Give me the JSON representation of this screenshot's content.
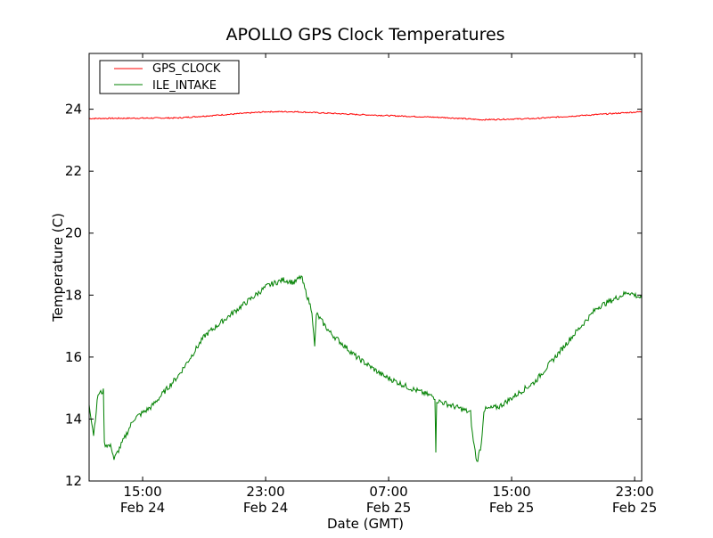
{
  "chart_data": {
    "type": "line",
    "title": "APOLLO GPS Clock Temperatures",
    "xlabel": "Date (GMT)",
    "ylabel": "Temperature (C)",
    "x_units": "hours since 00:00 Feb 24",
    "xlim": [
      11.52,
      47.46
    ],
    "ylim": [
      12,
      25.8
    ],
    "grid": false,
    "legend_placement": "top-left",
    "xticks": [
      {
        "x": 15,
        "label1": "15:00",
        "label2": "Feb 24"
      },
      {
        "x": 23,
        "label1": "23:00",
        "label2": "Feb 24"
      },
      {
        "x": 31,
        "label1": "07:00",
        "label2": "Feb 25"
      },
      {
        "x": 39,
        "label1": "15:00",
        "label2": "Feb 25"
      },
      {
        "x": 47,
        "label1": "23:00",
        "label2": "Feb 25"
      }
    ],
    "yticks": [
      12,
      14,
      16,
      18,
      20,
      22,
      24
    ],
    "series": [
      {
        "name": "GPS_CLOCK",
        "color": "#ff0000",
        "x": [
          11.52,
          17.32,
          23.12,
          24.85,
          28.91,
          34.7,
          37.03,
          40.51,
          47.46
        ],
        "y": [
          23.7,
          23.72,
          23.92,
          23.92,
          23.83,
          23.73,
          23.66,
          23.7,
          23.92
        ]
      },
      {
        "name": "ILE_INTAKE",
        "color": "#008000",
        "x": [
          11.52,
          11.81,
          12.1,
          12.45,
          12.51,
          12.97,
          13.14,
          13.84,
          14.42,
          15.58,
          17.32,
          19.06,
          20.8,
          23.12,
          24.16,
          24.85,
          25.32,
          25.55,
          26.01,
          26.19,
          26.3,
          27.17,
          28.91,
          30.65,
          32.39,
          34.01,
          34.07,
          34.13,
          35.87,
          36.33,
          36.45,
          36.74,
          37.03,
          37.2,
          38.19,
          40.51,
          42.83,
          44.57,
          46.59,
          47.46
        ],
        "y": [
          14.5,
          13.5,
          14.8,
          14.9,
          13.2,
          13.1,
          12.7,
          13.4,
          14.0,
          14.4,
          15.4,
          16.7,
          17.4,
          18.3,
          18.5,
          18.4,
          18.6,
          18.2,
          17.5,
          16.3,
          17.4,
          16.8,
          16.0,
          15.4,
          15.0,
          14.7,
          13.0,
          14.6,
          14.3,
          14.2,
          13.5,
          12.6,
          13.2,
          14.3,
          14.4,
          15.2,
          16.6,
          17.6,
          18.1,
          17.9
        ]
      }
    ]
  }
}
